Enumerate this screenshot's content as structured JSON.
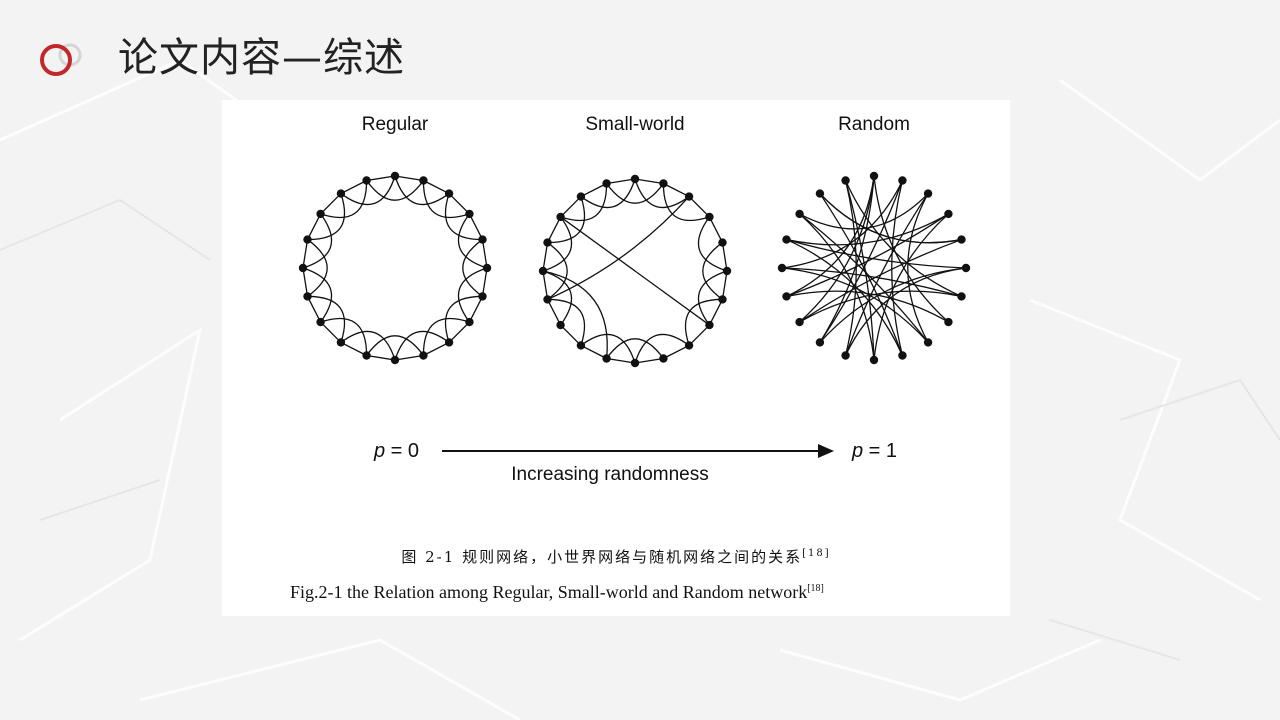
{
  "slide": {
    "title": "论文内容—综述",
    "accent_color": "#c0282d"
  },
  "figure": {
    "panels": [
      {
        "label": "Regular"
      },
      {
        "label": "Small-world"
      },
      {
        "label": "Random"
      }
    ],
    "p_left_var": "p",
    "p_left_value": " = 0",
    "p_right_var": "p",
    "p_right_value": " = 1",
    "arrow_label": "Increasing randomness",
    "caption_cn": "图 2-1 规则网络，小世界网络与随机网络之间的关系",
    "caption_cn_ref": "[18]",
    "caption_en": "Fig.2-1 the Relation among Regular, Small-world and Random network",
    "caption_en_ref": "[18]"
  }
}
